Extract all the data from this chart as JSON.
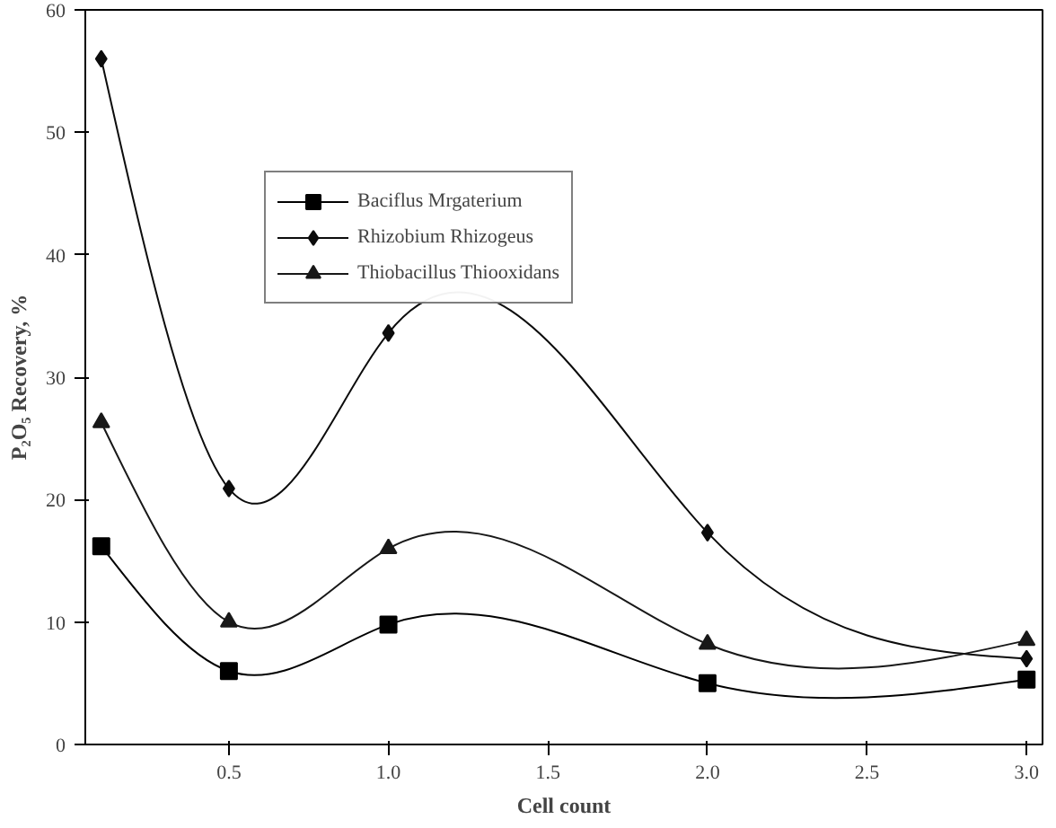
{
  "chart_data": {
    "type": "line",
    "xlabel": "Cell count",
    "ylabel": "P₂O₅ Recovery, %",
    "x": [
      0.1,
      0.5,
      1.0,
      2.0,
      3.0
    ],
    "series": [
      {
        "name": "Baciflus Mrgaterium",
        "color": "#000000",
        "marker": "square",
        "values": [
          16.2,
          6.0,
          9.8,
          5.0,
          5.3
        ]
      },
      {
        "name": "Rhizobium Rhizogeus",
        "color": "#0c0c0c",
        "marker": "diamond",
        "values": [
          56.0,
          20.9,
          33.6,
          17.3,
          7.0
        ]
      },
      {
        "name": "Thiobacillus Thiooxidans",
        "color": "#181818",
        "marker": "triangle",
        "values": [
          26.3,
          10.0,
          16.0,
          8.2,
          8.5
        ]
      }
    ],
    "xlim": [
      0.05,
      3.05
    ],
    "ylim": [
      0,
      60
    ],
    "xticks": [
      0.5,
      {
        "value": 1.0,
        "label": "1.0"
      },
      1.5,
      {
        "value": 2.0,
        "label": "2.0"
      },
      2.5,
      {
        "value": 3.0,
        "label": "3.0"
      }
    ],
    "yticks": [
      0,
      10,
      20,
      30,
      40,
      50,
      60
    ],
    "grid": false,
    "legend": "top",
    "line_style": "solid"
  }
}
